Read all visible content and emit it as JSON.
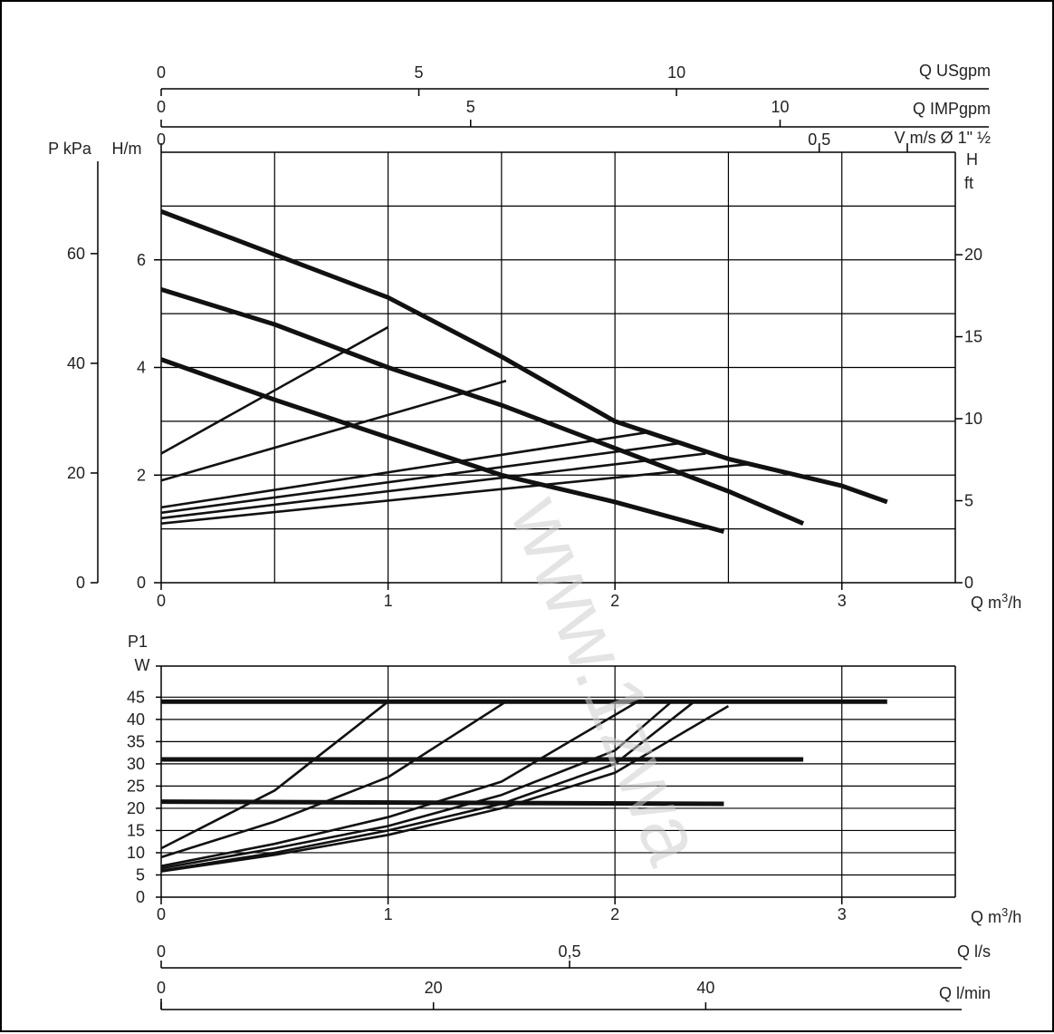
{
  "watermark": "www.1zwa",
  "chart_data": [
    {
      "type": "line",
      "name": "pump-head-curves",
      "x_unit_label_pre": "Q m",
      "x_unit_label_sup": "3",
      "x_unit_label_post": "/h",
      "xlim": [
        0,
        3.5
      ],
      "x_ticks": [
        0,
        1,
        2,
        3
      ],
      "x_tick_labels": [
        "0",
        "1",
        "2",
        "3"
      ],
      "left_axis_p": {
        "label": "P kPa",
        "ticks": [
          0,
          20,
          40,
          60
        ],
        "tick_labels": [
          "0",
          "20",
          "40",
          "60"
        ],
        "per_m": 9.81
      },
      "left_axis_h": {
        "label": "H/m",
        "ylim": [
          0,
          8
        ],
        "ticks": [
          0,
          2,
          4,
          6
        ],
        "tick_labels": [
          "0",
          "2",
          "4",
          "6"
        ]
      },
      "right_axis": {
        "label_1": "H",
        "label_2": "ft",
        "ticks": [
          0,
          5,
          10,
          15,
          20
        ],
        "tick_labels": [
          "0",
          "5",
          "10",
          "15",
          "20"
        ],
        "per_m": 3.281
      },
      "top_axes": [
        {
          "label": "Q USgpm",
          "factor": 4.403,
          "ticks": [
            0,
            5,
            10
          ],
          "tick_labels": [
            "0",
            "5",
            "10"
          ]
        },
        {
          "label": "Q IMPgpm",
          "factor": 3.666,
          "ticks": [
            0,
            5,
            10
          ],
          "tick_labels": [
            "0",
            "5",
            "10"
          ]
        },
        {
          "label": "V m/s Ø 1\" ½",
          "factor": 0.1724,
          "ticks": [
            0,
            0.5
          ],
          "tick_labels": [
            "0",
            "0,5"
          ]
        }
      ],
      "grid_y": [
        1,
        2,
        3,
        4,
        5,
        6,
        7
      ],
      "grid_x": [
        0.5,
        1,
        1.5,
        2,
        2.5,
        3
      ],
      "series": [
        {
          "points": [
            [
              0,
              6.9
            ],
            [
              0.5,
              6.1
            ],
            [
              1,
              5.3
            ],
            [
              1.5,
              4.2
            ],
            [
              2,
              3.0
            ],
            [
              2.5,
              2.3
            ],
            [
              3.0,
              1.8
            ],
            [
              3.2,
              1.5
            ]
          ]
        },
        {
          "points": [
            [
              0,
              5.45
            ],
            [
              0.5,
              4.8
            ],
            [
              1,
              4.0
            ],
            [
              1.5,
              3.3
            ],
            [
              2,
              2.5
            ],
            [
              2.5,
              1.7
            ],
            [
              2.83,
              1.1
            ]
          ]
        },
        {
          "points": [
            [
              0,
              4.15
            ],
            [
              0.5,
              3.4
            ],
            [
              1,
              2.7
            ],
            [
              1.5,
              2.0
            ],
            [
              2,
              1.5
            ],
            [
              2.48,
              0.95
            ]
          ]
        },
        {
          "points": [
            [
              0,
              2.4
            ],
            [
              1,
              4.75
            ]
          ]
        },
        {
          "points": [
            [
              0,
              1.9
            ],
            [
              1.52,
              3.75
            ]
          ]
        },
        {
          "points": [
            [
              0,
              1.4
            ],
            [
              2.15,
              2.8
            ]
          ]
        },
        {
          "points": [
            [
              0,
              1.3
            ],
            [
              2.3,
              2.6
            ]
          ]
        },
        {
          "points": [
            [
              0,
              1.2
            ],
            [
              2.4,
              2.4
            ]
          ]
        },
        {
          "points": [
            [
              0,
              1.1
            ],
            [
              2.58,
              2.2
            ]
          ]
        }
      ]
    },
    {
      "type": "line",
      "name": "pump-power-curves",
      "y_label_1": "P1",
      "y_label_2": "W",
      "ylim": [
        0,
        52
      ],
      "y_ticks": [
        0,
        5,
        10,
        15,
        20,
        25,
        30,
        35,
        40,
        45
      ],
      "y_tick_labels": [
        "0",
        "5",
        "10",
        "15",
        "20",
        "25",
        "30",
        "35",
        "40",
        "45"
      ],
      "xlim": [
        0,
        3.5
      ],
      "x_ticks": [
        0,
        1,
        2,
        3
      ],
      "x_tick_labels": [
        "0",
        "1",
        "2",
        "3"
      ],
      "x_unit_label_pre": "Q m",
      "x_unit_label_sup": "3",
      "x_unit_label_post": "/h",
      "grid_x": [
        1,
        2,
        3
      ],
      "bottom_axes": [
        {
          "label": "Q l/s",
          "factor": 0.2778,
          "ticks": [
            0,
            0.5
          ],
          "tick_labels": [
            "0",
            "0,5"
          ]
        },
        {
          "label": "Q l/min",
          "factor": 16.667,
          "ticks": [
            0,
            20,
            40
          ],
          "tick_labels": [
            "0",
            "20",
            "40"
          ]
        }
      ],
      "series": [
        {
          "points": [
            [
              0,
              44
            ],
            [
              3.2,
              44
            ]
          ]
        },
        {
          "points": [
            [
              0,
              31
            ],
            [
              2.83,
              31
            ]
          ]
        },
        {
          "points": [
            [
              0,
              21.5
            ],
            [
              2.48,
              21
            ]
          ]
        },
        {
          "points": [
            [
              0,
              11
            ],
            [
              0.5,
              24
            ],
            [
              1,
              44
            ]
          ]
        },
        {
          "points": [
            [
              0,
              9
            ],
            [
              0.5,
              17
            ],
            [
              1,
              27
            ],
            [
              1.52,
              44
            ]
          ]
        },
        {
          "points": [
            [
              0,
              7
            ],
            [
              0.5,
              12
            ],
            [
              1,
              18
            ],
            [
              1.5,
              26
            ],
            [
              2.1,
              44
            ]
          ]
        },
        {
          "points": [
            [
              0,
              6.5
            ],
            [
              0.5,
              11
            ],
            [
              1,
              16
            ],
            [
              1.5,
              23
            ],
            [
              2,
              33
            ],
            [
              2.25,
              44
            ]
          ]
        },
        {
          "points": [
            [
              0,
              6
            ],
            [
              0.5,
              10
            ],
            [
              1,
              15
            ],
            [
              1.5,
              21
            ],
            [
              2,
              30
            ],
            [
              2.35,
              44
            ]
          ]
        },
        {
          "points": [
            [
              0,
              5.8
            ],
            [
              0.5,
              9.5
            ],
            [
              1,
              14
            ],
            [
              1.5,
              20
            ],
            [
              2,
              28
            ],
            [
              2.5,
              43
            ]
          ]
        }
      ]
    }
  ]
}
